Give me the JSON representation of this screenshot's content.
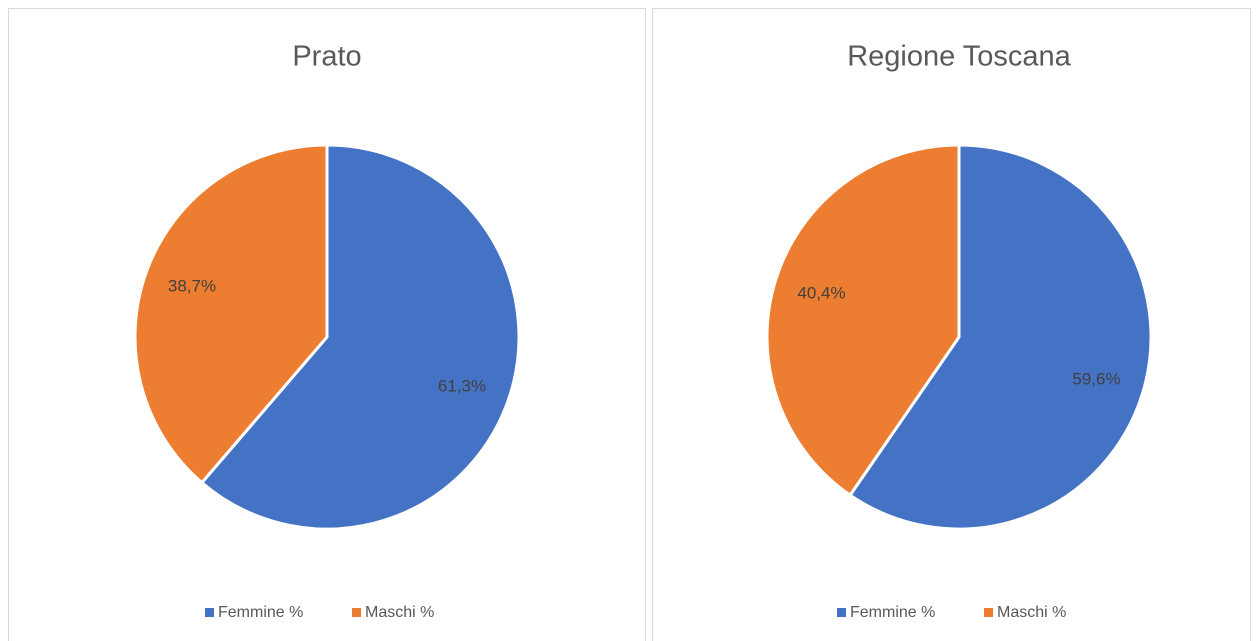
{
  "chart_data": [
    {
      "type": "pie",
      "title": "Prato",
      "categories": [
        "Femmine %",
        "Maschi %"
      ],
      "values": [
        61.3,
        38.7
      ],
      "value_labels": [
        "61,3%",
        "38,7%"
      ],
      "colors": [
        "#4472c4",
        "#ed7d31"
      ],
      "legend": "bottom"
    },
    {
      "type": "pie",
      "title": "Regione Toscana",
      "categories": [
        "Femmine %",
        "Maschi %"
      ],
      "values": [
        59.6,
        40.4
      ],
      "value_labels": [
        "59,6%",
        "40,4%"
      ],
      "colors": [
        "#4472c4",
        "#ed7d31"
      ],
      "legend": "bottom"
    }
  ]
}
